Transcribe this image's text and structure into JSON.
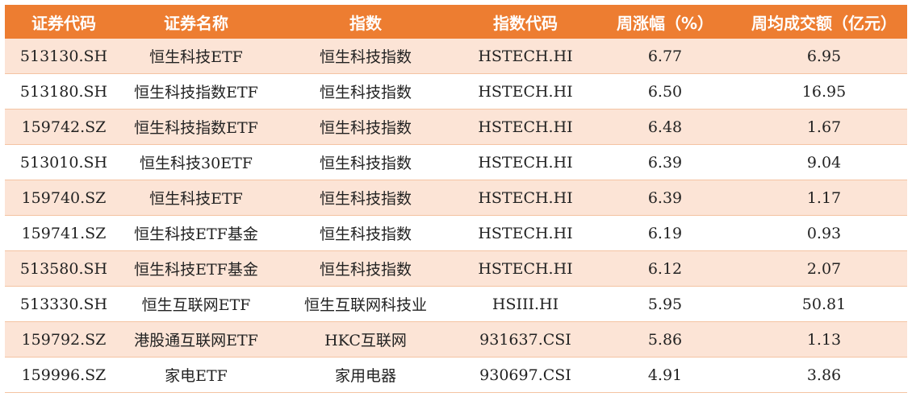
{
  "table": {
    "headers": [
      "证券代码",
      "证券名称",
      "指数",
      "指数代码",
      "周涨幅（%）",
      "周均成交额（亿元）"
    ],
    "rows": [
      [
        "513130.SH",
        "恒生科技ETF",
        "恒生科技指数",
        "HSTECH.HI",
        "6.77",
        "6.95"
      ],
      [
        "513180.SH",
        "恒生科技指数ETF",
        "恒生科技指数",
        "HSTECH.HI",
        "6.50",
        "16.95"
      ],
      [
        "159742.SZ",
        "恒生科技指数ETF",
        "恒生科技指数",
        "HSTECH.HI",
        "6.48",
        "1.67"
      ],
      [
        "513010.SH",
        "恒生科技30ETF",
        "恒生科技指数",
        "HSTECH.HI",
        "6.39",
        "9.04"
      ],
      [
        "159740.SZ",
        "恒生科技ETF",
        "恒生科技指数",
        "HSTECH.HI",
        "6.39",
        "1.17"
      ],
      [
        "159741.SZ",
        "恒生科技ETF基金",
        "恒生科技指数",
        "HSTECH.HI",
        "6.19",
        "0.93"
      ],
      [
        "513580.SH",
        "恒生科技ETF基金",
        "恒生科技指数",
        "HSTECH.HI",
        "6.12",
        "2.07"
      ],
      [
        "513330.SH",
        "恒生互联网ETF",
        "恒生互联网科技业",
        "HSIII.HI",
        "5.95",
        "50.81"
      ],
      [
        "159792.SZ",
        "港股通互联网ETF",
        "HKC互联网",
        "931637.CSI",
        "5.86",
        "1.13"
      ],
      [
        "159996.SZ",
        "家电ETF",
        "家用电器",
        "930697.CSI",
        "4.91",
        "3.86"
      ]
    ]
  },
  "colors": {
    "header_bg": "#ed7d31",
    "header_text": "#ffffff",
    "band_row": "#fce4d6",
    "plain_row": "#ffffff"
  }
}
